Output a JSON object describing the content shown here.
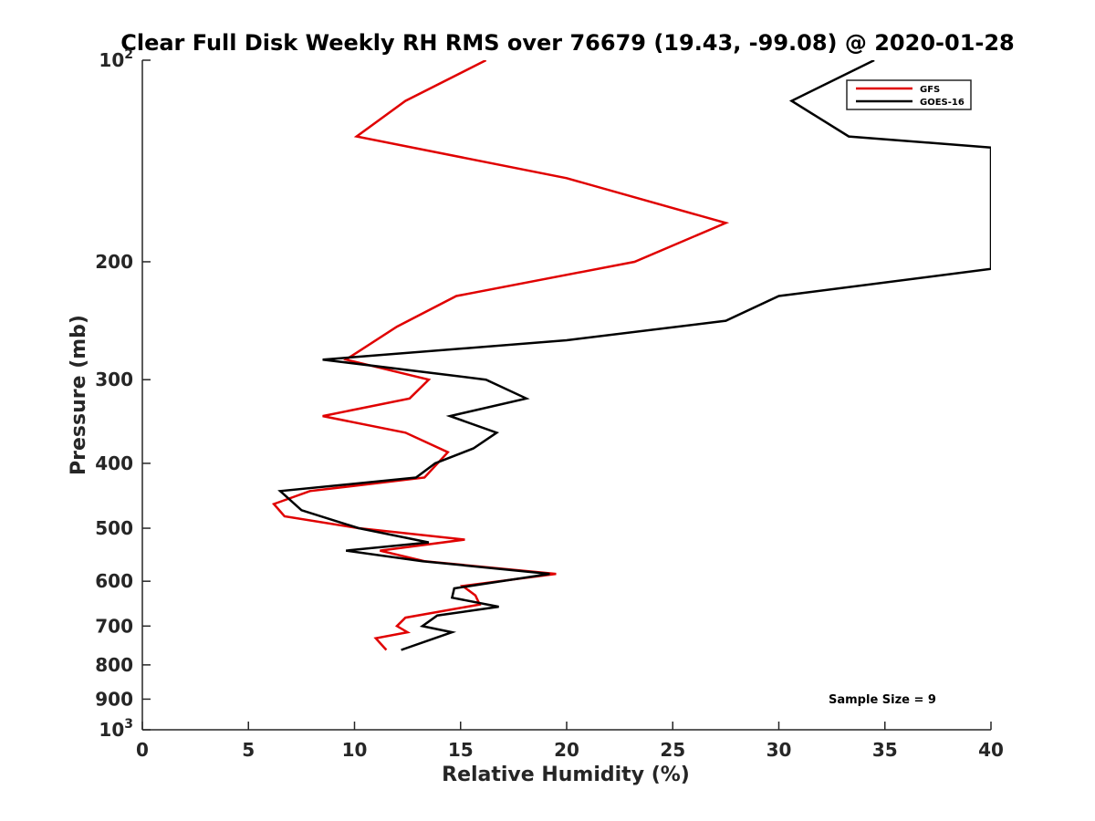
{
  "chart_data": {
    "type": "line",
    "title": "Clear Full Disk Weekly RH RMS over 76679 (19.43, -99.08) @ 2020-01-28",
    "xlabel": "Relative Humidity (%)",
    "ylabel": "Pressure (mb)",
    "xlim": [
      0,
      40
    ],
    "ylim": [
      100,
      1000
    ],
    "y_scale": "log",
    "y_reversed": true,
    "x_ticks": [
      0,
      5,
      10,
      15,
      20,
      25,
      30,
      35,
      40
    ],
    "y_ticks": [
      {
        "value": 100,
        "base": "10",
        "exp": "2"
      },
      {
        "value": 200,
        "label": "200"
      },
      {
        "value": 300,
        "label": "300"
      },
      {
        "value": 400,
        "label": "400"
      },
      {
        "value": 500,
        "label": "500"
      },
      {
        "value": 600,
        "label": "600"
      },
      {
        "value": 700,
        "label": "700"
      },
      {
        "value": 800,
        "label": "800"
      },
      {
        "value": 900,
        "label": "900"
      },
      {
        "value": 1000,
        "base": "10",
        "exp": "3"
      }
    ],
    "grid": false,
    "legend_position": "top-right",
    "annotation": "Sample Size = 9",
    "series": [
      {
        "name": "GFS",
        "color": "#e00000",
        "points": [
          [
            16.2,
            100
          ],
          [
            12.4,
            115
          ],
          [
            10.1,
            130
          ],
          [
            20.0,
            150
          ],
          [
            27.5,
            175
          ],
          [
            23.2,
            200
          ],
          [
            14.8,
            225
          ],
          [
            12.0,
            250
          ],
          [
            9.6,
            280
          ],
          [
            13.5,
            300
          ],
          [
            12.6,
            320
          ],
          [
            8.5,
            340
          ],
          [
            12.4,
            360
          ],
          [
            14.4,
            385
          ],
          [
            13.3,
            420
          ],
          [
            7.9,
            440
          ],
          [
            6.2,
            460
          ],
          [
            6.7,
            480
          ],
          [
            10.2,
            500
          ],
          [
            15.2,
            520
          ],
          [
            11.2,
            540
          ],
          [
            13.3,
            560
          ],
          [
            19.5,
            585
          ],
          [
            15.1,
            610
          ],
          [
            15.7,
            630
          ],
          [
            15.9,
            650
          ],
          [
            12.4,
            680
          ],
          [
            12.0,
            700
          ],
          [
            12.5,
            715
          ],
          [
            11.0,
            730
          ],
          [
            11.5,
            760
          ]
        ]
      },
      {
        "name": "GOES-16",
        "color": "#000000",
        "points": [
          [
            34.5,
            100
          ],
          [
            30.6,
            115
          ],
          [
            33.3,
            130
          ],
          [
            40.0,
            135
          ],
          [
            40.0,
            205
          ],
          [
            30.0,
            225
          ],
          [
            27.5,
            245
          ],
          [
            20.0,
            262
          ],
          [
            8.5,
            280
          ],
          [
            16.2,
            300
          ],
          [
            18.1,
            320
          ],
          [
            14.5,
            340
          ],
          [
            16.7,
            360
          ],
          [
            15.6,
            380
          ],
          [
            13.8,
            400
          ],
          [
            12.9,
            420
          ],
          [
            6.5,
            440
          ],
          [
            7.5,
            470
          ],
          [
            10.2,
            500
          ],
          [
            13.5,
            525
          ],
          [
            9.6,
            540
          ],
          [
            13.2,
            560
          ],
          [
            19.2,
            585
          ],
          [
            14.7,
            615
          ],
          [
            14.6,
            635
          ],
          [
            16.8,
            655
          ],
          [
            13.9,
            675
          ],
          [
            13.2,
            700
          ],
          [
            14.6,
            715
          ],
          [
            13.5,
            735
          ],
          [
            12.2,
            760
          ]
        ]
      }
    ]
  }
}
